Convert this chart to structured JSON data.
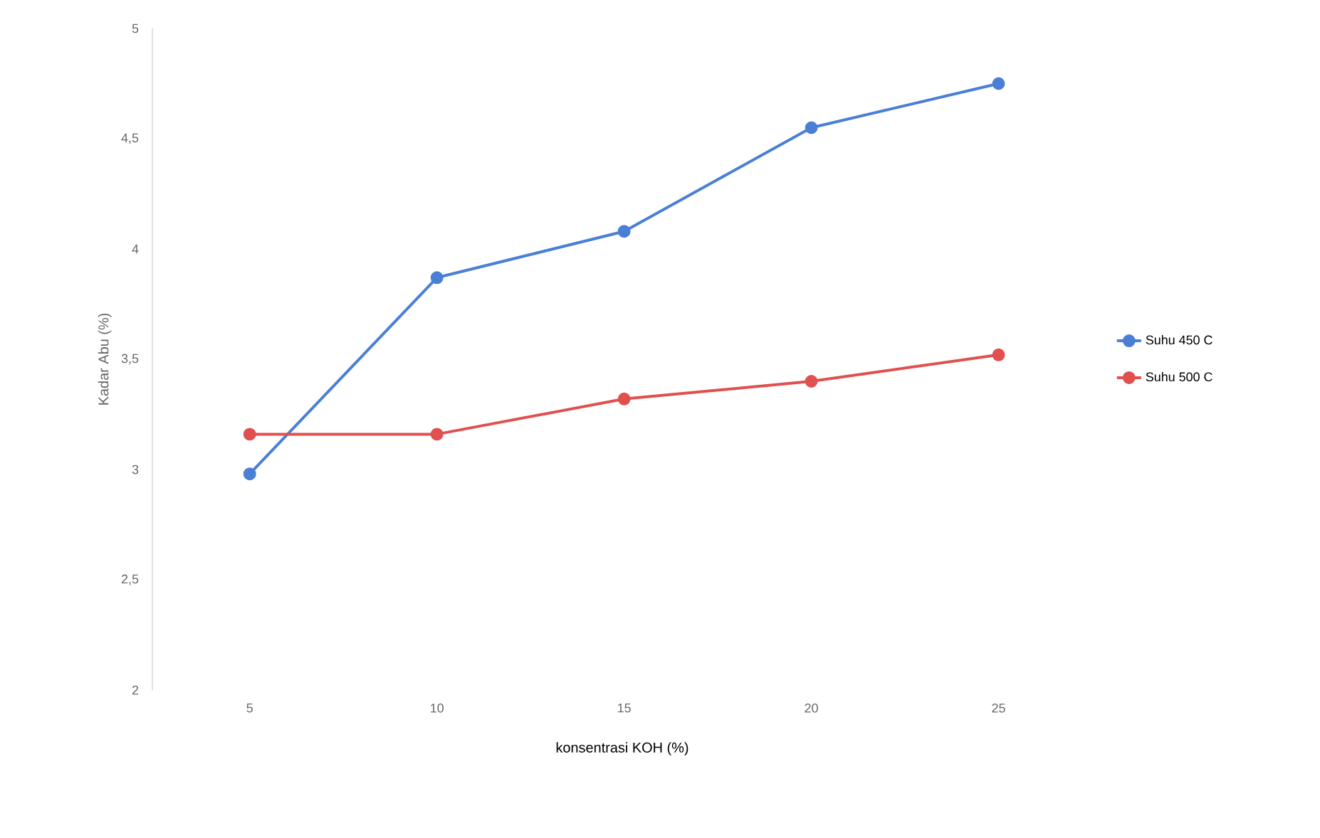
{
  "chart_data": {
    "type": "line",
    "xlabel": "konsentrasi KOH (%)",
    "ylabel": "Kadar Abu (%)",
    "categories": [
      "5",
      "10",
      "15",
      "20",
      "25"
    ],
    "series": [
      {
        "name": "Suhu 450 C",
        "color": "#4a7fd6",
        "values": [
          2.98,
          3.87,
          4.08,
          4.55,
          4.75
        ]
      },
      {
        "name": "Suhu 500 C",
        "color": "#e0504f",
        "values": [
          3.16,
          3.16,
          3.32,
          3.4,
          3.52
        ]
      }
    ],
    "ylim": [
      2,
      5
    ],
    "yticks": [
      2,
      {
        "value": 2.5,
        "label": "2,5"
      },
      3,
      {
        "value": 3.5,
        "label": "3,5"
      },
      4,
      {
        "value": 4.5,
        "label": "4,5"
      },
      5
    ],
    "grid": false,
    "legend": "right",
    "marker": "circle",
    "line_style": "solid"
  }
}
